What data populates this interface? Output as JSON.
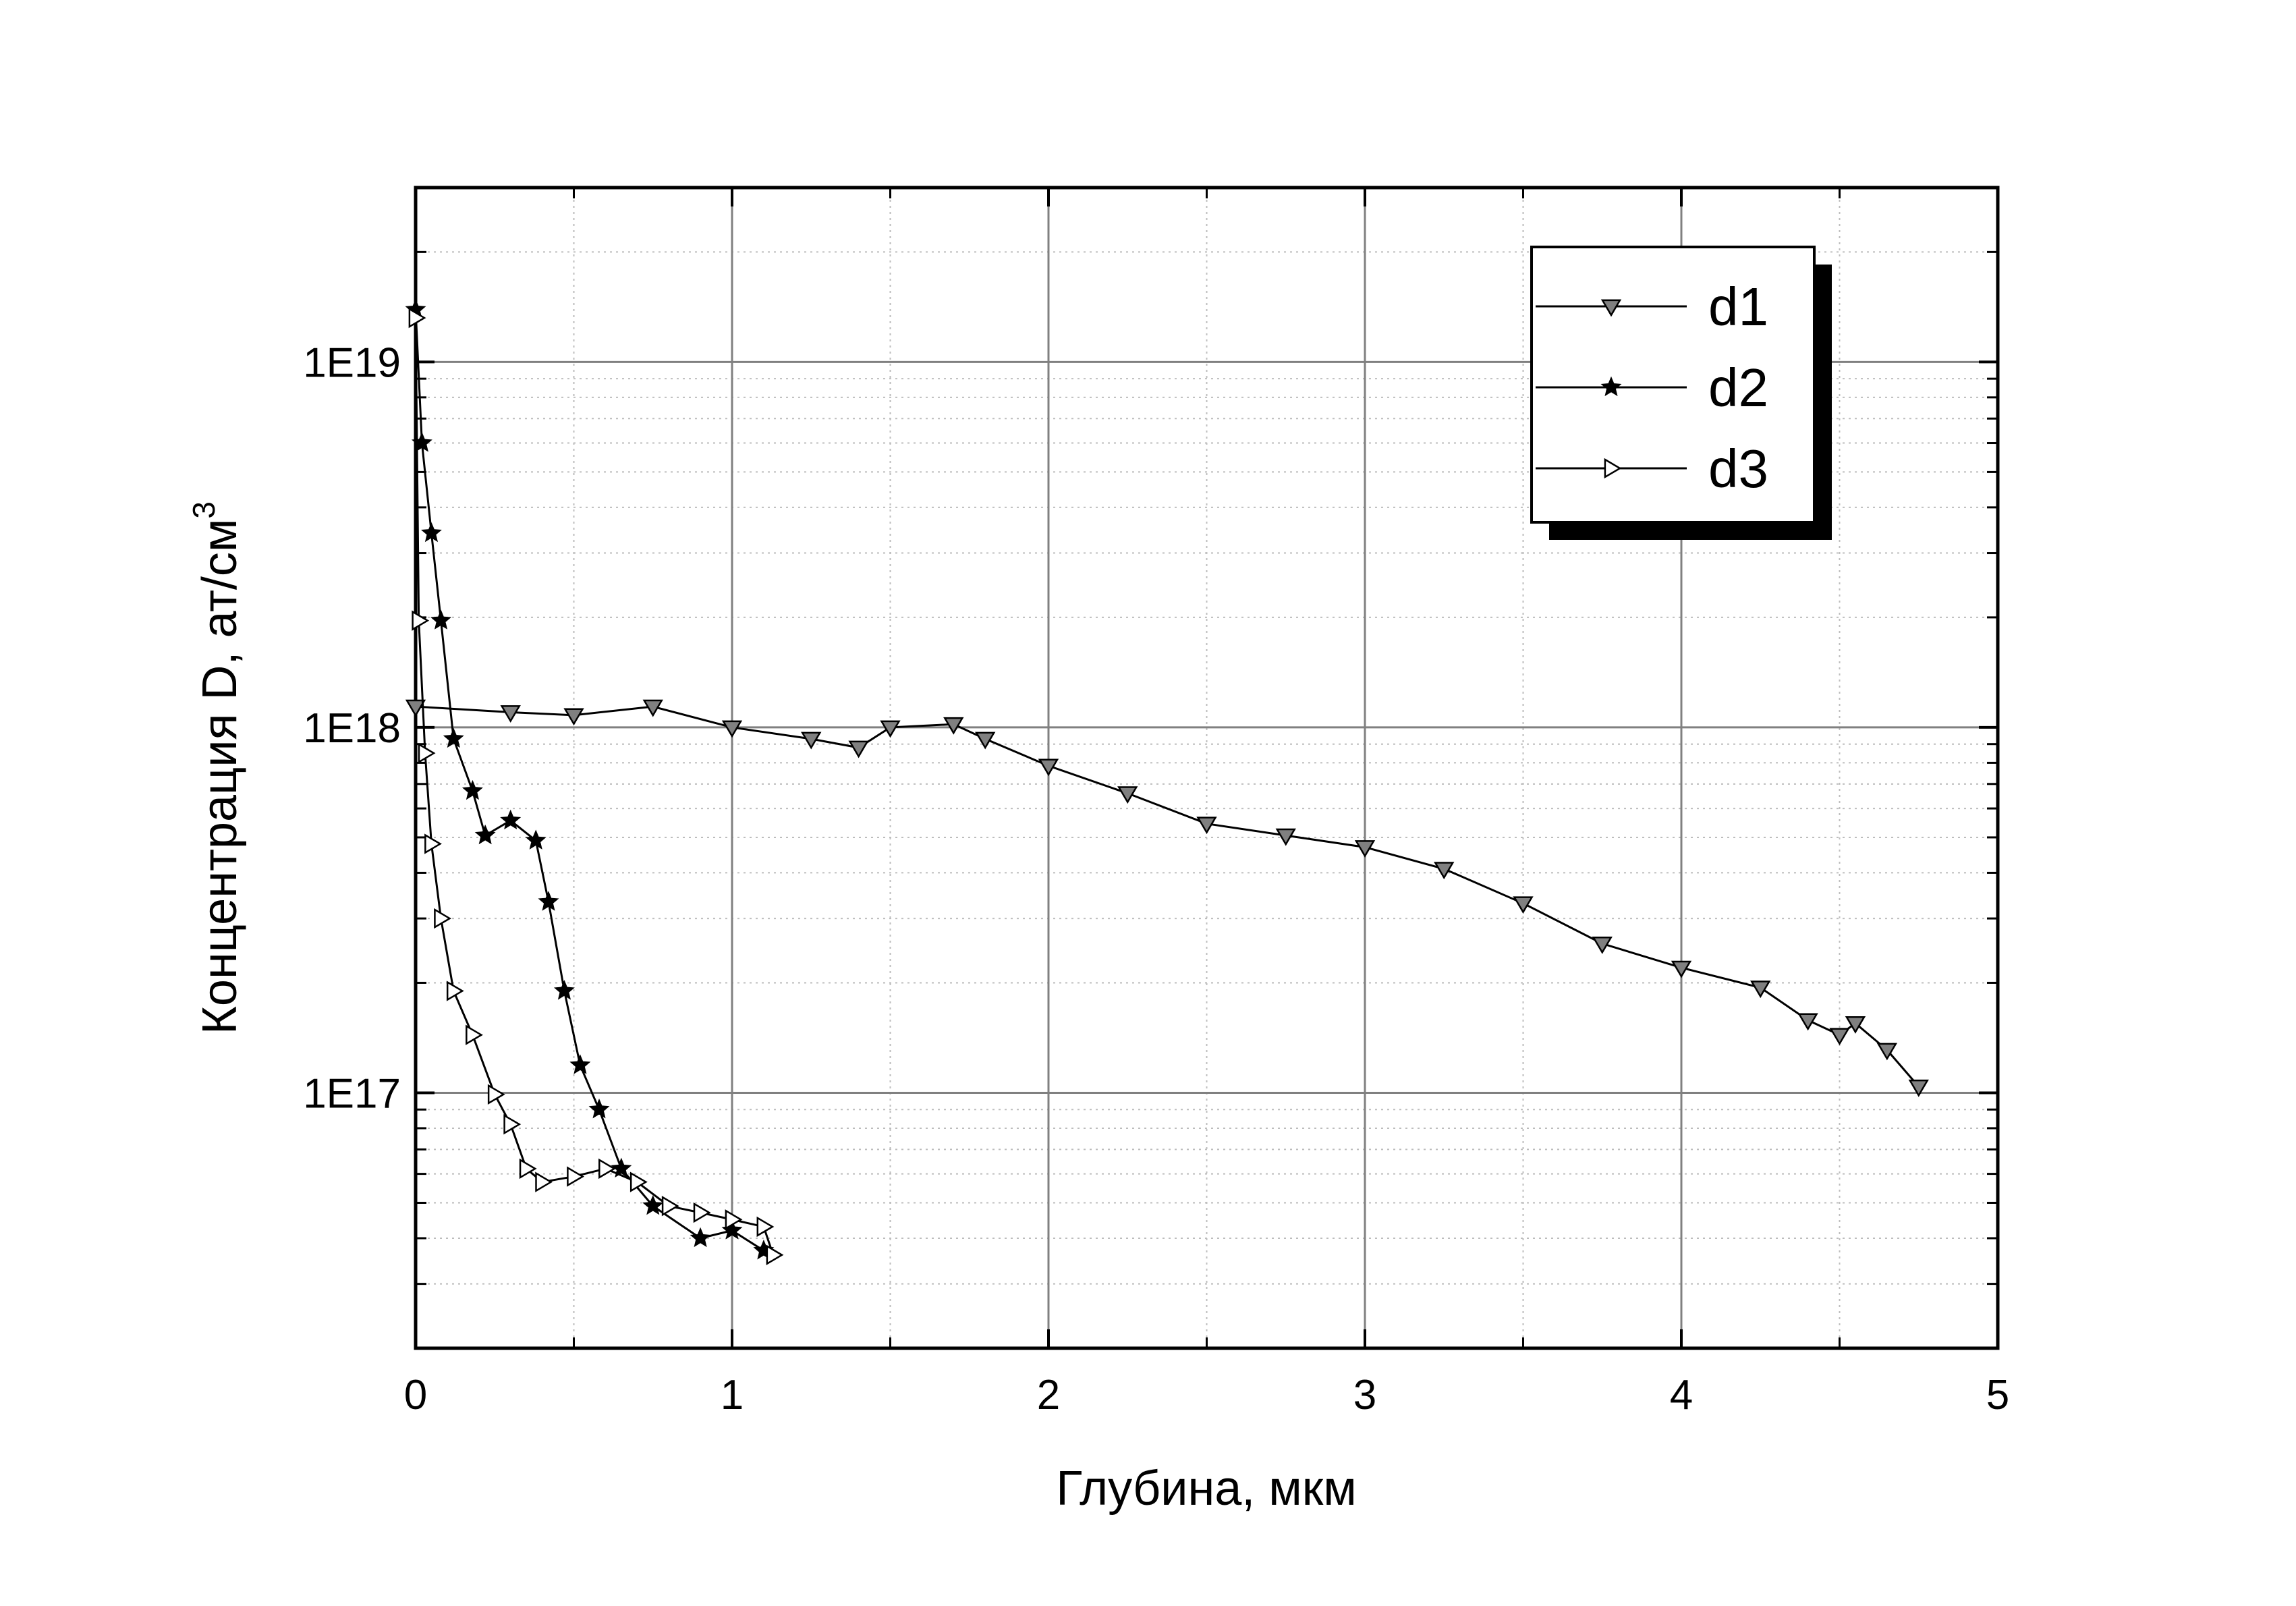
{
  "chart_data": {
    "type": "line",
    "xlabel": "Глубина, мкм",
    "ylabel": "Концентрация D, ат/см",
    "ylabel_superscript": "3",
    "xlim": [
      0,
      5
    ],
    "ylim": [
      2e+16,
      3e+19
    ],
    "xticks": [
      0,
      1,
      2,
      3,
      4,
      5
    ],
    "xminorticks": [
      0.5,
      1.5,
      2.5,
      3.5,
      4.5
    ],
    "yticks": [
      {
        "value": 1e+17,
        "label": "1E17"
      },
      {
        "value": 1e+18,
        "label": "1E18"
      },
      {
        "value": 1e+19,
        "label": "1E19"
      }
    ],
    "yminorticks": [
      2e+16,
      3e+16,
      4e+16,
      5e+16,
      6e+16,
      7e+16,
      8e+16,
      9e+16,
      2e+17,
      3e+17,
      4e+17,
      5e+17,
      6e+17,
      7e+17,
      8e+17,
      9e+17,
      2e+18,
      3e+18,
      4e+18,
      5e+18,
      6e+18,
      7e+18,
      8e+18,
      9e+18,
      2e+19,
      3e+19
    ],
    "log_y": true,
    "grid": true,
    "legend_position": "upper right",
    "series": [
      {
        "name": "d1",
        "color": "#808080",
        "marker": "down-triangle",
        "x": [
          0,
          0.3,
          0.5,
          0.75,
          1.0,
          1.25,
          1.4,
          1.5,
          1.7,
          1.8,
          2.0,
          2.25,
          2.5,
          2.75,
          3.0,
          3.25,
          3.5,
          3.75,
          4.0,
          4.25,
          4.4,
          4.5,
          4.55,
          4.65,
          4.75
        ],
        "values": [
          1.14e+18,
          1.1e+18,
          1.08e+18,
          1.14e+18,
          1e+18,
          9.3e+17,
          8.8e+17,
          1e+18,
          1.02e+18,
          9.3e+17,
          7.85e+17,
          6.6e+17,
          5.45e+17,
          5.06e+17,
          4.7e+17,
          4.1e+17,
          3.3e+17,
          2.56e+17,
          2.2e+17,
          1.94e+17,
          1.58e+17,
          1.44e+17,
          1.55e+17,
          1.31e+17,
          1.04e+17
        ]
      },
      {
        "name": "d2",
        "color": "#000000",
        "marker": "star",
        "x": [
          0,
          0.02,
          0.05,
          0.08,
          0.12,
          0.18,
          0.22,
          0.3,
          0.38,
          0.42,
          0.47,
          0.52,
          0.58,
          0.65,
          0.75,
          0.9,
          1.0,
          1.1
        ],
        "values": [
          1.39e+19,
          6e+18,
          3.4e+18,
          1.96e+18,
          9.3e+17,
          6.7e+17,
          5.06e+17,
          5.56e+17,
          4.9e+17,
          3.33e+17,
          1.9e+17,
          1.19e+17,
          9e+16,
          6.2e+16,
          4.9e+16,
          4e+16,
          4.2e+16,
          3.7e+16
        ]
      },
      {
        "name": "d3",
        "color": "#000000",
        "marker": "right-triangle-open",
        "x": [
          0,
          0.01,
          0.03,
          0.05,
          0.08,
          0.12,
          0.18,
          0.25,
          0.3,
          0.35,
          0.4,
          0.5,
          0.6,
          0.7,
          0.8,
          0.9,
          1.0,
          1.1,
          1.13
        ],
        "values": [
          1.32e+19,
          1.96e+18,
          8.5e+17,
          4.8e+17,
          3e+17,
          1.9e+17,
          1.44e+17,
          9.9e+16,
          8.2e+16,
          6.2e+16,
          5.7e+16,
          5.9e+16,
          6.2e+16,
          5.7e+16,
          4.9e+16,
          4.7e+16,
          4.5e+16,
          4.3e+16,
          3.6e+16
        ]
      }
    ]
  }
}
